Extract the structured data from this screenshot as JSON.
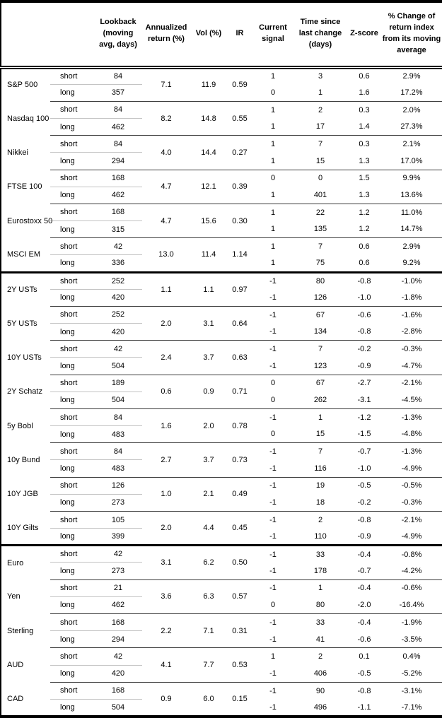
{
  "table": {
    "columns": {
      "instrument": "",
      "horizon": "",
      "lookback": "Lookback (moving avg, days)",
      "annualized_return": "Annualized return (%)",
      "vol": "Vol (%)",
      "ir": "IR",
      "current_signal": "Current signal",
      "time_since": "Time since last change (days)",
      "zscore": "Z-score",
      "pct_change": "% Change of return index from its moving average"
    },
    "horizon_labels": {
      "short": "short",
      "long": "long"
    },
    "groups": [
      {
        "name": "S&P 500",
        "ann_return": "7.1",
        "vol": "11.9",
        "ir": "0.59",
        "section_end": false,
        "short": {
          "lookback": "84",
          "signal": "1",
          "time": "3",
          "zscore": "0.6",
          "pct": "2.9%"
        },
        "long": {
          "lookback": "357",
          "signal": "0",
          "time": "1",
          "zscore": "1.6",
          "pct": "17.2%"
        }
      },
      {
        "name": "Nasdaq 100",
        "ann_return": "8.2",
        "vol": "14.8",
        "ir": "0.55",
        "section_end": false,
        "short": {
          "lookback": "84",
          "signal": "1",
          "time": "2",
          "zscore": "0.3",
          "pct": "2.0%"
        },
        "long": {
          "lookback": "462",
          "signal": "1",
          "time": "17",
          "zscore": "1.4",
          "pct": "27.3%"
        }
      },
      {
        "name": "Nikkei",
        "ann_return": "4.0",
        "vol": "14.4",
        "ir": "0.27",
        "section_end": false,
        "short": {
          "lookback": "84",
          "signal": "1",
          "time": "7",
          "zscore": "0.3",
          "pct": "2.1%"
        },
        "long": {
          "lookback": "294",
          "signal": "1",
          "time": "15",
          "zscore": "1.3",
          "pct": "17.0%"
        }
      },
      {
        "name": "FTSE 100",
        "ann_return": "4.7",
        "vol": "12.1",
        "ir": "0.39",
        "section_end": false,
        "short": {
          "lookback": "168",
          "signal": "0",
          "time": "0",
          "zscore": "1.5",
          "pct": "9.9%"
        },
        "long": {
          "lookback": "462",
          "signal": "1",
          "time": "401",
          "zscore": "1.3",
          "pct": "13.6%"
        }
      },
      {
        "name": "Eurostoxx 50",
        "ann_return": "4.7",
        "vol": "15.6",
        "ir": "0.30",
        "section_end": false,
        "short": {
          "lookback": "168",
          "signal": "1",
          "time": "22",
          "zscore": "1.2",
          "pct": "11.0%"
        },
        "long": {
          "lookback": "315",
          "signal": "1",
          "time": "135",
          "zscore": "1.2",
          "pct": "14.7%"
        }
      },
      {
        "name": "MSCI EM",
        "ann_return": "13.0",
        "vol": "11.4",
        "ir": "1.14",
        "section_end": true,
        "short": {
          "lookback": "42",
          "signal": "1",
          "time": "7",
          "zscore": "0.6",
          "pct": "2.9%"
        },
        "long": {
          "lookback": "336",
          "signal": "1",
          "time": "75",
          "zscore": "0.6",
          "pct": "9.2%"
        }
      },
      {
        "name": "2Y USTs",
        "ann_return": "1.1",
        "vol": "1.1",
        "ir": "0.97",
        "section_end": false,
        "short": {
          "lookback": "252",
          "signal": "-1",
          "time": "80",
          "zscore": "-0.8",
          "pct": "-1.0%"
        },
        "long": {
          "lookback": "420",
          "signal": "-1",
          "time": "126",
          "zscore": "-1.0",
          "pct": "-1.8%"
        }
      },
      {
        "name": "5Y USTs",
        "ann_return": "2.0",
        "vol": "3.1",
        "ir": "0.64",
        "section_end": false,
        "short": {
          "lookback": "252",
          "signal": "-1",
          "time": "67",
          "zscore": "-0.6",
          "pct": "-1.6%"
        },
        "long": {
          "lookback": "420",
          "signal": "-1",
          "time": "134",
          "zscore": "-0.8",
          "pct": "-2.8%"
        }
      },
      {
        "name": "10Y USTs",
        "ann_return": "2.4",
        "vol": "3.7",
        "ir": "0.63",
        "section_end": false,
        "short": {
          "lookback": "42",
          "signal": "-1",
          "time": "7",
          "zscore": "-0.2",
          "pct": "-0.3%"
        },
        "long": {
          "lookback": "504",
          "signal": "-1",
          "time": "123",
          "zscore": "-0.9",
          "pct": "-4.7%"
        }
      },
      {
        "name": "2Y Schatz",
        "ann_return": "0.6",
        "vol": "0.9",
        "ir": "0.71",
        "section_end": false,
        "short": {
          "lookback": "189",
          "signal": "0",
          "time": "67",
          "zscore": "-2.7",
          "pct": "-2.1%"
        },
        "long": {
          "lookback": "504",
          "signal": "0",
          "time": "262",
          "zscore": "-3.1",
          "pct": "-4.5%"
        }
      },
      {
        "name": "5y Bobl",
        "ann_return": "1.6",
        "vol": "2.0",
        "ir": "0.78",
        "section_end": false,
        "short": {
          "lookback": "84",
          "signal": "-1",
          "time": "1",
          "zscore": "-1.2",
          "pct": "-1.3%"
        },
        "long": {
          "lookback": "483",
          "signal": "0",
          "time": "15",
          "zscore": "-1.5",
          "pct": "-4.8%"
        }
      },
      {
        "name": "10y Bund",
        "ann_return": "2.7",
        "vol": "3.7",
        "ir": "0.73",
        "section_end": false,
        "short": {
          "lookback": "84",
          "signal": "-1",
          "time": "7",
          "zscore": "-0.7",
          "pct": "-1.3%"
        },
        "long": {
          "lookback": "483",
          "signal": "-1",
          "time": "116",
          "zscore": "-1.0",
          "pct": "-4.9%"
        }
      },
      {
        "name": "10Y JGB",
        "ann_return": "1.0",
        "vol": "2.1",
        "ir": "0.49",
        "section_end": false,
        "short": {
          "lookback": "126",
          "signal": "-1",
          "time": "19",
          "zscore": "-0.5",
          "pct": "-0.5%"
        },
        "long": {
          "lookback": "273",
          "signal": "-1",
          "time": "18",
          "zscore": "-0.2",
          "pct": "-0.3%"
        }
      },
      {
        "name": "10Y Gilts",
        "ann_return": "2.0",
        "vol": "4.4",
        "ir": "0.45",
        "section_end": true,
        "short": {
          "lookback": "105",
          "signal": "-1",
          "time": "2",
          "zscore": "-0.8",
          "pct": "-2.1%"
        },
        "long": {
          "lookback": "399",
          "signal": "-1",
          "time": "110",
          "zscore": "-0.9",
          "pct": "-4.9%"
        }
      },
      {
        "name": "Euro",
        "ann_return": "3.1",
        "vol": "6.2",
        "ir": "0.50",
        "section_end": false,
        "short": {
          "lookback": "42",
          "signal": "-1",
          "time": "33",
          "zscore": "-0.4",
          "pct": "-0.8%"
        },
        "long": {
          "lookback": "273",
          "signal": "-1",
          "time": "178",
          "zscore": "-0.7",
          "pct": "-4.2%"
        }
      },
      {
        "name": "Yen",
        "ann_return": "3.6",
        "vol": "6.3",
        "ir": "0.57",
        "section_end": false,
        "short": {
          "lookback": "21",
          "signal": "-1",
          "time": "1",
          "zscore": "-0.4",
          "pct": "-0.6%"
        },
        "long": {
          "lookback": "462",
          "signal": "0",
          "time": "80",
          "zscore": "-2.0",
          "pct": "-16.4%"
        }
      },
      {
        "name": "Sterling",
        "ann_return": "2.2",
        "vol": "7.1",
        "ir": "0.31",
        "section_end": false,
        "short": {
          "lookback": "168",
          "signal": "-1",
          "time": "33",
          "zscore": "-0.4",
          "pct": "-1.9%"
        },
        "long": {
          "lookback": "294",
          "signal": "-1",
          "time": "41",
          "zscore": "-0.6",
          "pct": "-3.5%"
        }
      },
      {
        "name": "AUD",
        "ann_return": "4.1",
        "vol": "7.7",
        "ir": "0.53",
        "section_end": false,
        "short": {
          "lookback": "42",
          "signal": "1",
          "time": "2",
          "zscore": "0.1",
          "pct": "0.4%"
        },
        "long": {
          "lookback": "420",
          "signal": "-1",
          "time": "406",
          "zscore": "-0.5",
          "pct": "-5.2%"
        }
      },
      {
        "name": "CAD",
        "ann_return": "0.9",
        "vol": "6.0",
        "ir": "0.15",
        "section_end": false,
        "short": {
          "lookback": "168",
          "signal": "-1",
          "time": "90",
          "zscore": "-0.8",
          "pct": "-3.1%"
        },
        "long": {
          "lookback": "504",
          "signal": "-1",
          "time": "496",
          "zscore": "-1.1",
          "pct": "-7.1%"
        }
      }
    ]
  }
}
